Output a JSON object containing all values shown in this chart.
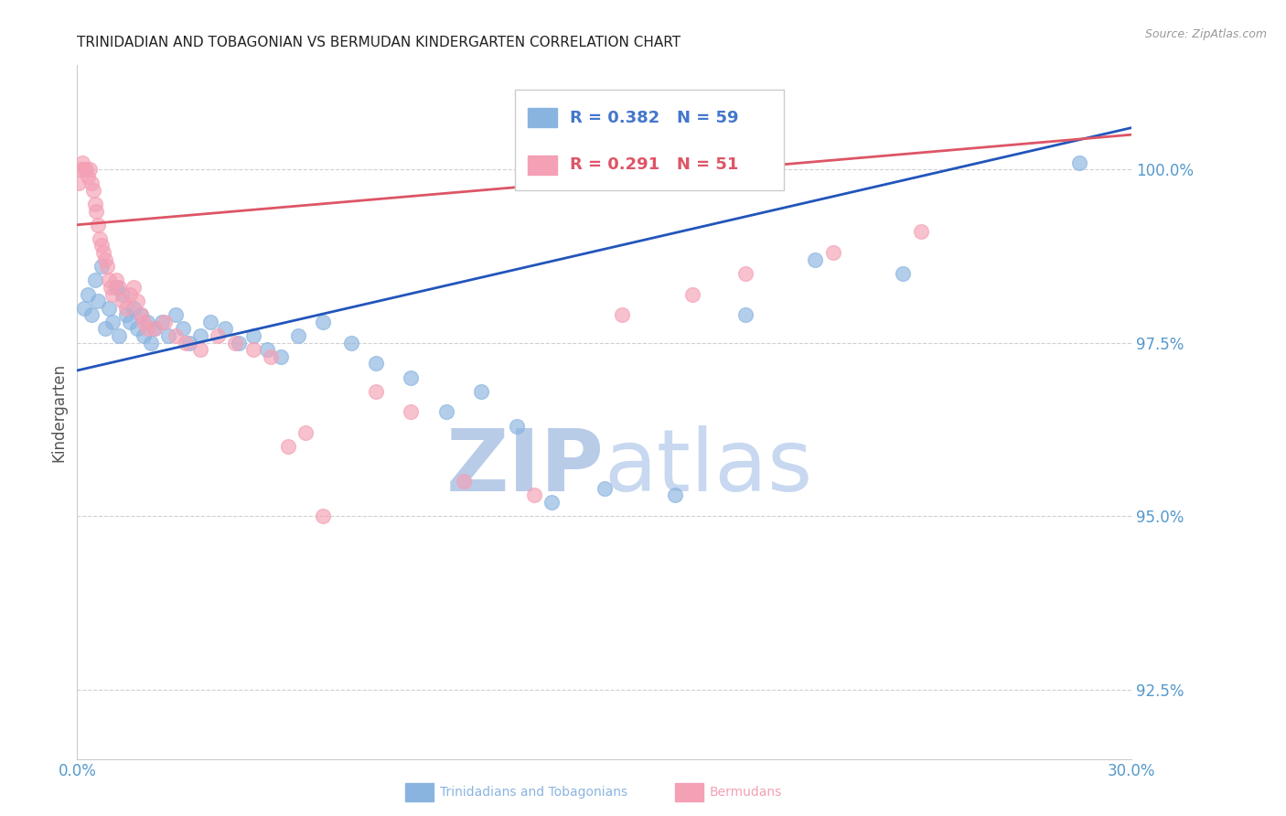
{
  "title": "TRINIDADIAN AND TOBAGONIAN VS BERMUDAN KINDERGARTEN CORRELATION CHART",
  "source": "Source: ZipAtlas.com",
  "ylabel": "Kindergarten",
  "xlim": [
    0.0,
    30.0
  ],
  "ylim": [
    91.5,
    101.5
  ],
  "yticks": [
    92.5,
    95.0,
    97.5,
    100.0
  ],
  "ytick_labels": [
    "92.5%",
    "95.0%",
    "97.5%",
    "100.0%"
  ],
  "xticks": [
    0.0,
    7.5,
    15.0,
    22.5,
    30.0
  ],
  "xtick_labels": [
    "0.0%",
    "",
    "",
    "",
    "30.0%"
  ],
  "blue_color": "#8ab4e0",
  "pink_color": "#f4a0b5",
  "blue_line_color": "#2255bb",
  "pink_line_color": "#dd5566",
  "legend_blue_text_color": "#4477cc",
  "legend_pink_text_color": "#dd5566",
  "watermark_zip_color": "#b8cce8",
  "watermark_atlas_color": "#c8d8f0",
  "title_color": "#222222",
  "source_color": "#999999",
  "axis_label_color": "#555555",
  "tick_color": "#5599cc",
  "grid_color": "#d0d0d0",
  "blue_scatter_x": [
    0.2,
    0.3,
    0.4,
    0.5,
    0.6,
    0.7,
    0.8,
    0.9,
    1.0,
    1.1,
    1.2,
    1.3,
    1.4,
    1.5,
    1.6,
    1.7,
    1.8,
    1.9,
    2.0,
    2.1,
    2.2,
    2.4,
    2.6,
    2.8,
    3.0,
    3.2,
    3.5,
    3.8,
    4.2,
    4.6,
    5.0,
    5.4,
    5.8,
    6.3,
    7.0,
    7.8,
    8.5,
    9.5,
    10.5,
    11.5,
    12.5,
    13.5,
    15.0,
    17.0,
    19.0,
    21.0,
    23.5,
    28.5
  ],
  "blue_scatter_y": [
    98.0,
    98.2,
    97.9,
    98.4,
    98.1,
    98.6,
    97.7,
    98.0,
    97.8,
    98.3,
    97.6,
    98.2,
    97.9,
    97.8,
    98.0,
    97.7,
    97.9,
    97.6,
    97.8,
    97.5,
    97.7,
    97.8,
    97.6,
    97.9,
    97.7,
    97.5,
    97.6,
    97.8,
    97.7,
    97.5,
    97.6,
    97.4,
    97.3,
    97.6,
    97.8,
    97.5,
    97.2,
    97.0,
    96.5,
    96.8,
    96.3,
    95.2,
    95.4,
    95.3,
    97.9,
    98.7,
    98.5,
    100.1
  ],
  "pink_scatter_x": [
    0.05,
    0.1,
    0.15,
    0.2,
    0.25,
    0.3,
    0.35,
    0.4,
    0.45,
    0.5,
    0.55,
    0.6,
    0.65,
    0.7,
    0.75,
    0.8,
    0.85,
    0.9,
    0.95,
    1.0,
    1.1,
    1.2,
    1.3,
    1.4,
    1.5,
    1.6,
    1.7,
    1.8,
    1.9,
    2.0,
    2.2,
    2.5,
    2.8,
    3.1,
    3.5,
    4.0,
    4.5,
    5.0,
    5.5,
    6.0,
    6.5,
    7.0,
    8.5,
    9.5,
    11.0,
    13.0,
    15.5,
    17.5,
    19.0,
    21.5,
    24.0
  ],
  "pink_scatter_y": [
    99.8,
    100.0,
    100.1,
    100.0,
    100.0,
    99.9,
    100.0,
    99.8,
    99.7,
    99.5,
    99.4,
    99.2,
    99.0,
    98.9,
    98.8,
    98.7,
    98.6,
    98.4,
    98.3,
    98.2,
    98.4,
    98.3,
    98.1,
    98.0,
    98.2,
    98.3,
    98.1,
    97.9,
    97.8,
    97.7,
    97.7,
    97.8,
    97.6,
    97.5,
    97.4,
    97.6,
    97.5,
    97.4,
    97.3,
    96.0,
    96.2,
    95.0,
    96.8,
    96.5,
    95.5,
    95.3,
    97.9,
    98.2,
    98.5,
    98.8,
    99.1
  ]
}
